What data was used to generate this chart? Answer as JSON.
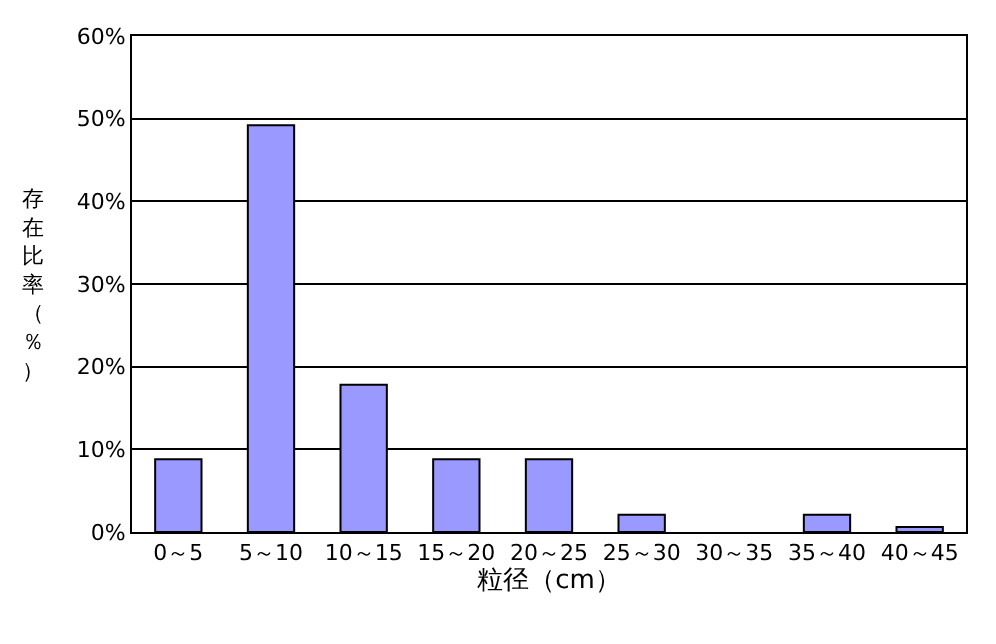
{
  "chart_data": {
    "type": "bar",
    "xlabel": "粒径（cm）",
    "ylabel": "存在比率（％）",
    "categories": [
      "0～5",
      "5～10",
      "10～15",
      "15～20",
      "20～25",
      "25～30",
      "30～35",
      "35～40",
      "40～45"
    ],
    "series": [
      {
        "color": "#9999ff",
        "values": [
          8.8,
          49.2,
          17.8,
          8.8,
          8.8,
          2.1,
          null,
          2.1,
          0.6
        ]
      }
    ],
    "ylim": [
      0,
      60
    ],
    "yticks": [
      {
        "value": 0,
        "label": "0%"
      },
      {
        "value": 10,
        "label": "10%"
      },
      {
        "value": 20,
        "label": "20%"
      },
      {
        "value": 30,
        "label": "30%"
      },
      {
        "value": 40,
        "label": "40%"
      },
      {
        "value": 50,
        "label": "50%"
      },
      {
        "value": 60,
        "label": "60%"
      }
    ],
    "grid": "y"
  }
}
